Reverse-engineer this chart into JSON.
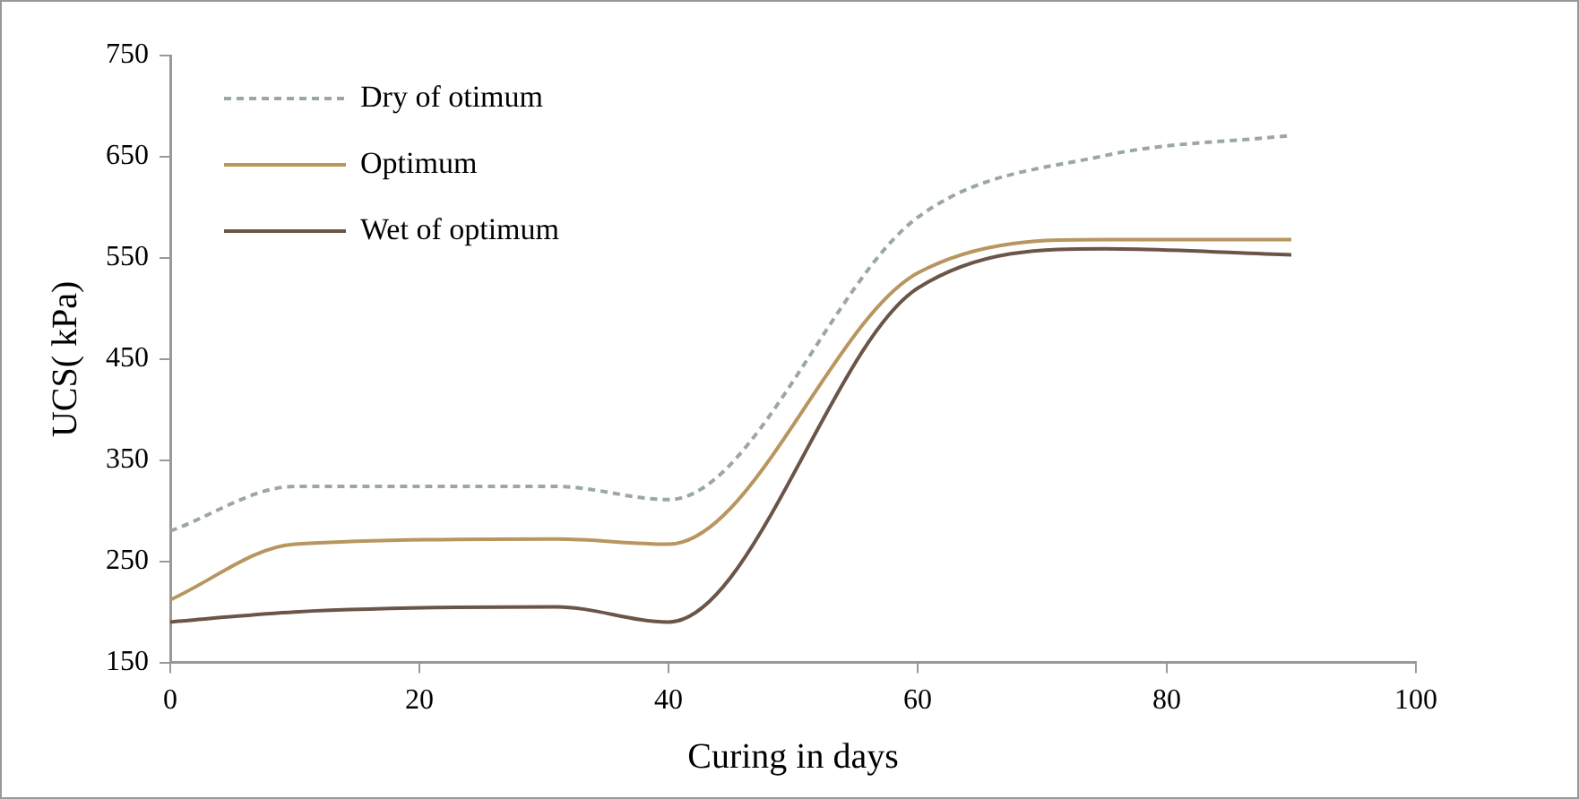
{
  "chart_data": {
    "type": "line",
    "xlabel": "Curing in days",
    "ylabel": "UCS( kPa)",
    "x": [
      0,
      10,
      31,
      40,
      60,
      75,
      90
    ],
    "series": [
      {
        "name": "Dry of otimum",
        "color": "#9aa8a0",
        "line_style": "dashed",
        "values": [
          280,
          324,
          324,
          311,
          590,
          651,
          671
        ]
      },
      {
        "name": "Optimum",
        "color": "#b8965f",
        "line_style": "solid",
        "values": [
          212,
          267,
          272,
          267,
          535,
          568,
          568
        ]
      },
      {
        "name": "Wet of optimum",
        "color": "#6b5548",
        "line_style": "solid",
        "values": [
          190,
          200,
          205,
          190,
          520,
          559,
          553
        ]
      }
    ],
    "xlim": [
      0,
      100
    ],
    "xticks": [
      0,
      20,
      40,
      60,
      80,
      100
    ],
    "ylim": [
      150,
      750
    ],
    "yticks": [
      150,
      250,
      350,
      450,
      550,
      650,
      750
    ],
    "grid": false,
    "legend": "top left",
    "marker": "none"
  }
}
